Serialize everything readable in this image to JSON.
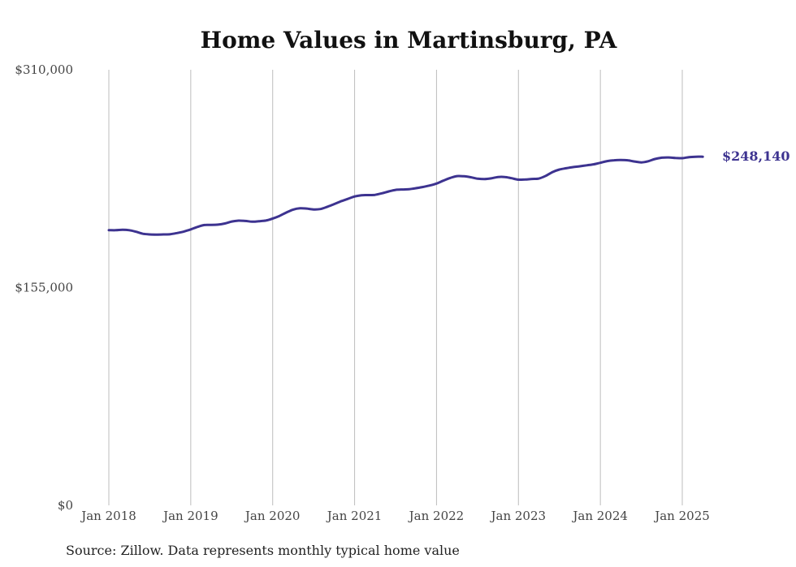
{
  "chart_data": {
    "type": "line",
    "title": "Home Values in Martinsburg, PA",
    "xlabel": "",
    "ylabel": "",
    "ylim": [
      0,
      310000
    ],
    "y_ticks": [
      "$0",
      "$155,000",
      "$310,000"
    ],
    "y_tick_values": [
      0,
      155000,
      310000
    ],
    "x_ticks": [
      "Jan 2018",
      "Jan 2019",
      "Jan 2020",
      "Jan 2021",
      "Jan 2022",
      "Jan 2023",
      "Jan 2024",
      "Jan 2025"
    ],
    "x_tick_values": [
      "2018-01",
      "2019-01",
      "2020-01",
      "2021-01",
      "2022-01",
      "2023-01",
      "2024-01",
      "2025-01"
    ],
    "grid": "vertical",
    "line_color": "#3d3390",
    "end_label": "$248,140",
    "series": [
      {
        "x": [
          "2018-01",
          "2018-02",
          "2018-03",
          "2018-04",
          "2018-05",
          "2018-06",
          "2018-07",
          "2018-08",
          "2018-09",
          "2018-10",
          "2018-11",
          "2018-12",
          "2019-01",
          "2019-02",
          "2019-03",
          "2019-04",
          "2019-05",
          "2019-06",
          "2019-07",
          "2019-08",
          "2019-09",
          "2019-10",
          "2019-11",
          "2019-12",
          "2020-01",
          "2020-02",
          "2020-03",
          "2020-04",
          "2020-05",
          "2020-06",
          "2020-07",
          "2020-08",
          "2020-09",
          "2020-10",
          "2020-11",
          "2020-12",
          "2021-01",
          "2021-02",
          "2021-03",
          "2021-04",
          "2021-05",
          "2021-06",
          "2021-07",
          "2021-08",
          "2021-09",
          "2021-10",
          "2021-11",
          "2021-12",
          "2022-01",
          "2022-02",
          "2022-03",
          "2022-04",
          "2022-05",
          "2022-06",
          "2022-07",
          "2022-08",
          "2022-09",
          "2022-10",
          "2022-11",
          "2022-12",
          "2023-01",
          "2023-02",
          "2023-03",
          "2023-04",
          "2023-05",
          "2023-06",
          "2023-07",
          "2023-08",
          "2023-09",
          "2023-10",
          "2023-11",
          "2023-12",
          "2024-01",
          "2024-02",
          "2024-03",
          "2024-04",
          "2024-05",
          "2024-06",
          "2024-07",
          "2024-08",
          "2024-09",
          "2024-10",
          "2024-11",
          "2024-12",
          "2025-01",
          "2025-02",
          "2025-03",
          "2025-04"
        ],
        "values": [
          195900,
          195800,
          196100,
          195800,
          194700,
          193300,
          192800,
          192700,
          192800,
          193000,
          193800,
          194900,
          196400,
          198200,
          199500,
          199600,
          199800,
          200600,
          202000,
          202600,
          202400,
          201900,
          202200,
          202700,
          204100,
          206000,
          208400,
          210500,
          211400,
          211200,
          210600,
          210900,
          212500,
          214400,
          216400,
          218100,
          219800,
          220700,
          220800,
          221000,
          222100,
          223400,
          224500,
          224800,
          225000,
          225700,
          226600,
          227600,
          229000,
          231100,
          233000,
          234300,
          234200,
          233500,
          232500,
          232200,
          232700,
          233700,
          233700,
          232800,
          231800,
          231900,
          232300,
          232600,
          234500,
          237200,
          239000,
          239900,
          240700,
          241300,
          242000,
          242700,
          243800,
          245000,
          245600,
          245800,
          245600,
          244700,
          244100,
          244900,
          246500,
          247400,
          247600,
          247200,
          247100,
          247800,
          248140,
          248140
        ]
      }
    ]
  },
  "footer": {
    "source": "Source: Zillow. Data represents monthly typical home value"
  }
}
